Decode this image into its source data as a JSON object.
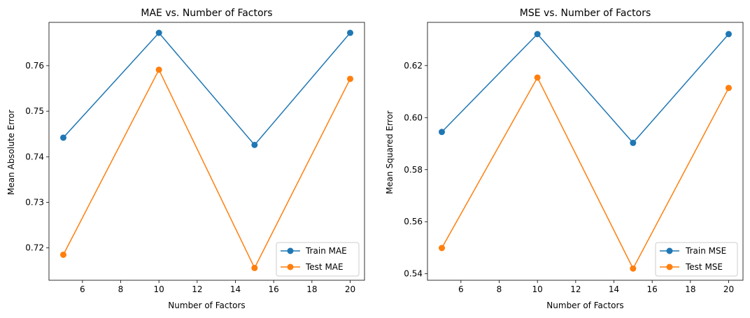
{
  "chart_data": [
    {
      "type": "line",
      "title": "MAE vs. Number of Factors",
      "xlabel": "Number of Factors",
      "ylabel": "Mean Absolute Error",
      "x": [
        5,
        10,
        15,
        20
      ],
      "xlim": [
        4.25,
        20.75
      ],
      "ylim": [
        0.7129,
        0.7695
      ],
      "xticks": [
        6,
        8,
        10,
        12,
        14,
        16,
        18,
        20
      ],
      "yticks": [
        0.72,
        0.73,
        0.74,
        0.75,
        0.76
      ],
      "xtick_labels": [
        "6",
        "8",
        "10",
        "12",
        "14",
        "16",
        "18",
        "20"
      ],
      "ytick_labels": [
        "0.72",
        "0.73",
        "0.74",
        "0.75",
        "0.76"
      ],
      "series": [
        {
          "name": "Train MAE",
          "color": "#1f77b4",
          "values": [
            0.7442,
            0.7672,
            0.7426,
            0.7672
          ]
        },
        {
          "name": "Test MAE",
          "color": "#ff7f0e",
          "values": [
            0.7185,
            0.7591,
            0.7156,
            0.7571
          ]
        }
      ],
      "legend": "lower-right",
      "grid": false
    },
    {
      "type": "line",
      "title": "MSE vs. Number of Factors",
      "xlabel": "Number of Factors",
      "ylabel": "Mean Squared Error",
      "x": [
        5,
        10,
        15,
        20
      ],
      "xlim": [
        4.25,
        20.75
      ],
      "ylim": [
        0.5375,
        0.6366
      ],
      "xticks": [
        6,
        8,
        10,
        12,
        14,
        16,
        18,
        20
      ],
      "yticks": [
        0.54,
        0.56,
        0.58,
        0.6,
        0.62
      ],
      "xtick_labels": [
        "6",
        "8",
        "10",
        "12",
        "14",
        "16",
        "18",
        "20"
      ],
      "ytick_labels": [
        "0.54",
        "0.56",
        "0.58",
        "0.60",
        "0.62"
      ],
      "series": [
        {
          "name": "Train MSE",
          "color": "#1f77b4",
          "values": [
            0.5945,
            0.6321,
            0.5903,
            0.6321
          ]
        },
        {
          "name": "Test MSE",
          "color": "#ff7f0e",
          "values": [
            0.5499,
            0.6154,
            0.542,
            0.6114
          ]
        }
      ],
      "legend": "lower-right",
      "grid": false
    }
  ]
}
